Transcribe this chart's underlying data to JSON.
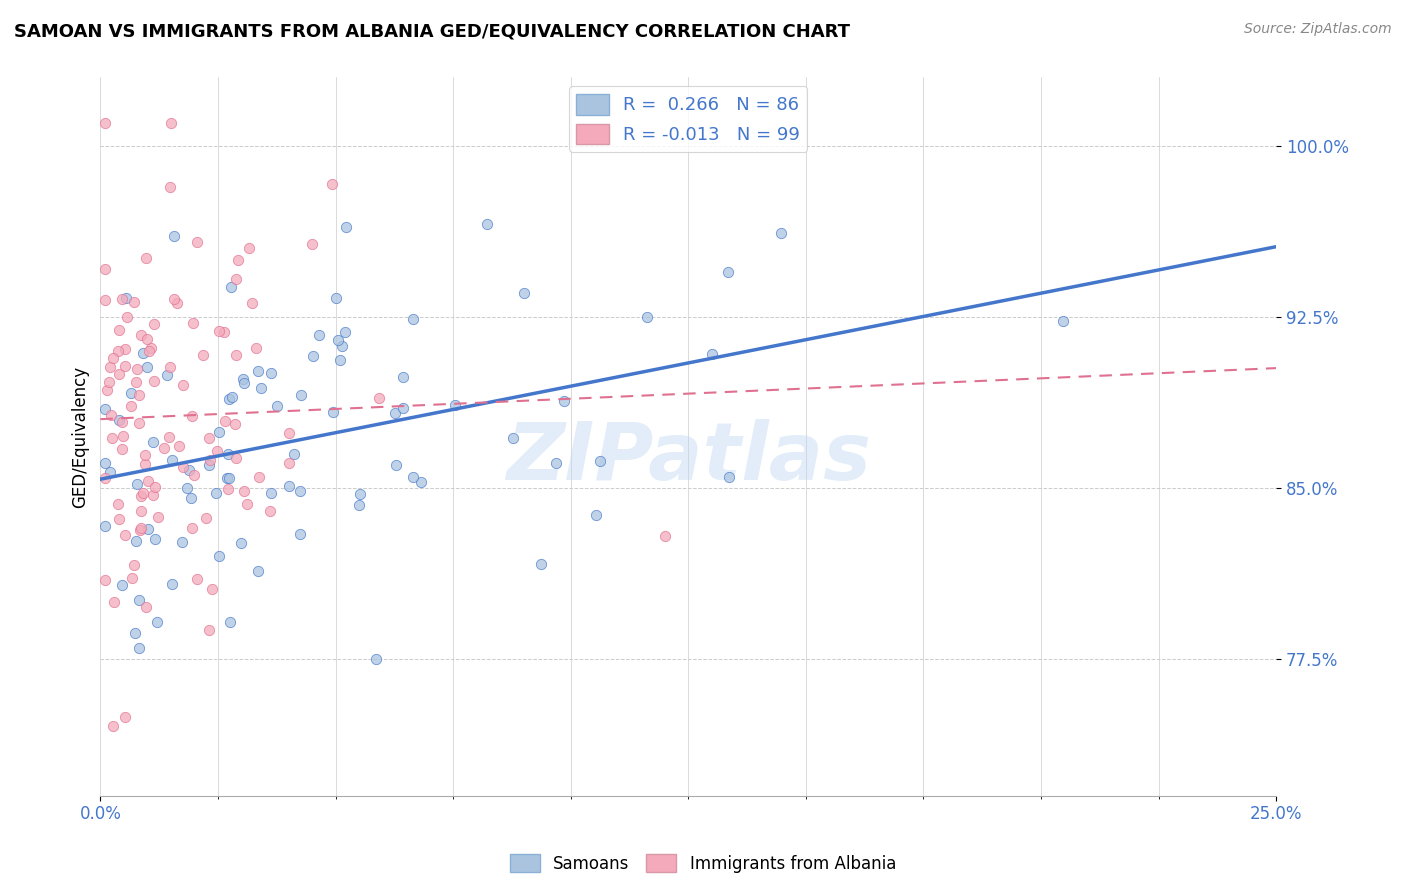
{
  "title": "SAMOAN VS IMMIGRANTS FROM ALBANIA GED/EQUIVALENCY CORRELATION CHART",
  "source": "Source: ZipAtlas.com",
  "ylabel": "GED/Equivalency",
  "xlim": [
    0.0,
    0.25
  ],
  "ylim": [
    0.715,
    1.03
  ],
  "yticks": [
    0.775,
    0.85,
    0.925,
    1.0
  ],
  "ytick_labels": [
    "77.5%",
    "85.0%",
    "92.5%",
    "100.0%"
  ],
  "xticks": [
    0.0,
    0.25
  ],
  "xtick_labels": [
    "0.0%",
    "25.0%"
  ],
  "blue_color": "#aac4e0",
  "pink_color": "#f4aabb",
  "trend_blue": "#4477cc",
  "trend_pink": "#e07090",
  "watermark": "ZIPatlas",
  "blue_N": 86,
  "pink_N": 99,
  "blue_R": 0.266,
  "pink_R": -0.013,
  "seed": 12345
}
